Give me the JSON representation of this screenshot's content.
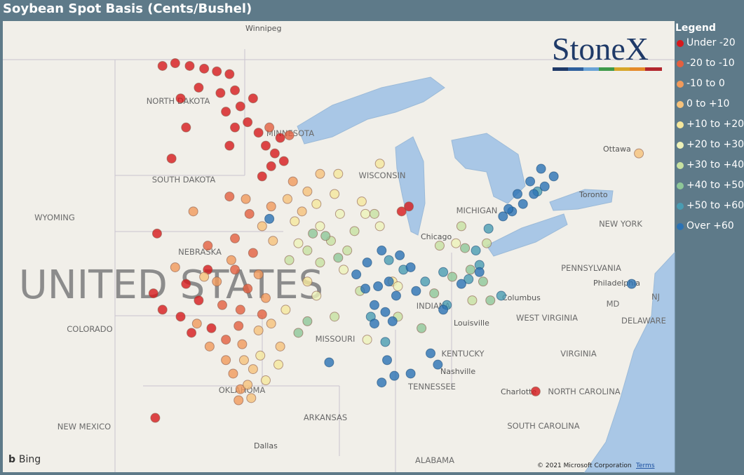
{
  "title": "Soybean Spot Basis (Cents/Bushel)",
  "logo": "StoneX",
  "legend": {
    "title": "Legend",
    "classes": [
      {
        "name": "Under -20",
        "color": "#d7191c"
      },
      {
        "name": "-20 to -10",
        "color": "#e35f3f"
      },
      {
        "name": "-10 to 0",
        "color": "#f19a5b"
      },
      {
        "name": "0 to +10",
        "color": "#f6c27b"
      },
      {
        "name": "+10 to +20",
        "color": "#f5e79c"
      },
      {
        "name": "+20 to +30",
        "color": "#eef2b9"
      },
      {
        "name": "+30 to +40",
        "color": "#c7e1a1"
      },
      {
        "name": "+40 to +50",
        "color": "#8ec798"
      },
      {
        "name": "+50 to +60",
        "color": "#4a9cb2"
      },
      {
        "name": "Over +60",
        "color": "#2b72b4"
      }
    ]
  },
  "map": {
    "country": "UNITED STATES",
    "labels": [
      "Winnipeg",
      "NORTH DAKOTA",
      "MINNESOTA",
      "SOUTH DAKOTA",
      "WYOMING",
      "NEBRASKA",
      "COLORADO",
      "MISSOURI",
      "OKLAHOMA",
      "NEW MEXICO",
      "ARKANSAS",
      "Dallas",
      "ALABAMA",
      "TENNESSEE",
      "KENTUCKY",
      "Nashville",
      "Louisville",
      "INDIANA",
      "Columbus",
      "WEST VIRGINIA",
      "VIRGINIA",
      "NORTH CAROLINA",
      "SOUTH CAROLINA",
      "Charlotte",
      "PENNSYLVANIA",
      "Philadelphia",
      "MD",
      "NJ",
      "DELAWARE",
      "NEW YORK",
      "Ottawa",
      "Chicago",
      "Toronto",
      "MICHIGAN",
      "WISCONSIN"
    ],
    "points": [
      [
        -101.5,
        48.5,
        0
      ],
      [
        -100.8,
        48.6,
        0
      ],
      [
        -100,
        48.5,
        0
      ],
      [
        -99.2,
        48.4,
        0
      ],
      [
        -98.5,
        48.3,
        0
      ],
      [
        -97.8,
        48.2,
        0
      ],
      [
        -97.5,
        47.6,
        0
      ],
      [
        -98.3,
        47.5,
        0
      ],
      [
        -99.5,
        47.7,
        0
      ],
      [
        -100.5,
        47.3,
        0
      ],
      [
        -97.2,
        47,
        0
      ],
      [
        -98,
        46.8,
        0
      ],
      [
        -96.8,
        46.4,
        0
      ],
      [
        -97.5,
        46.2,
        0
      ],
      [
        -96.5,
        47.3,
        0
      ],
      [
        -96.2,
        46,
        0
      ],
      [
        -95.8,
        45.5,
        0
      ],
      [
        -95.3,
        45.2,
        0
      ],
      [
        -95.5,
        44.7,
        0
      ],
      [
        -96,
        44.3,
        0
      ],
      [
        -94.8,
        44.9,
        0
      ],
      [
        -95,
        45.8,
        0
      ],
      [
        -100.2,
        46.2,
        0
      ],
      [
        -101,
        45,
        0
      ],
      [
        -97.8,
        45.5,
        0
      ],
      [
        -101.8,
        42,
        0
      ],
      [
        -102,
        39.5,
        0
      ],
      [
        -101.5,
        38.8,
        0
      ],
      [
        -100.5,
        38.5,
        0
      ],
      [
        -99.5,
        39.2,
        0
      ],
      [
        -98.8,
        38,
        0
      ],
      [
        -99,
        40.5,
        0
      ],
      [
        -100.2,
        39.9,
        0
      ],
      [
        -99.9,
        37.8,
        0
      ],
      [
        -101.9,
        34,
        0
      ],
      [
        -87.9,
        43.1,
        0
      ],
      [
        -88.3,
        42.9,
        0
      ],
      [
        -80.9,
        35.2,
        0
      ],
      [
        -97.5,
        40.5,
        1
      ],
      [
        -96.8,
        39.7,
        1
      ],
      [
        -97.2,
        38.8,
        1
      ],
      [
        -98.2,
        39,
        1
      ],
      [
        -96,
        38.6,
        1
      ],
      [
        -96.5,
        41.2,
        1
      ],
      [
        -97.5,
        41.8,
        1
      ],
      [
        -99,
        41.5,
        1
      ],
      [
        -98,
        37.5,
        1
      ],
      [
        -96.7,
        42.8,
        1
      ],
      [
        -97.8,
        43.5,
        1
      ],
      [
        -94.5,
        45.9,
        1
      ],
      [
        -95.6,
        46.2,
        1
      ],
      [
        -97.3,
        38.1,
        1
      ],
      [
        -98.5,
        40,
        2
      ],
      [
        -97.7,
        40.9,
        2
      ],
      [
        -96.2,
        40.3,
        2
      ],
      [
        -95.8,
        39.3,
        2
      ],
      [
        -97.1,
        37.3,
        2
      ],
      [
        -98,
        36.6,
        2
      ],
      [
        -97.6,
        36,
        2
      ],
      [
        -97.2,
        35.3,
        2
      ],
      [
        -97.3,
        34.8,
        2
      ],
      [
        -99.8,
        42.9,
        2
      ],
      [
        -96.9,
        43.4,
        2
      ],
      [
        -95.5,
        43.1,
        2
      ],
      [
        -94.3,
        44.1,
        2
      ],
      [
        -100.8,
        40.6,
        2
      ],
      [
        -99.6,
        38.2,
        2
      ],
      [
        -98.9,
        37.2,
        2
      ],
      [
        -96,
        42.3,
        3
      ],
      [
        -95.4,
        41.7,
        3
      ],
      [
        -96.5,
        36.2,
        3
      ],
      [
        -96.8,
        35.5,
        3
      ],
      [
        -95,
        37.2,
        3
      ],
      [
        -95.5,
        38.2,
        3
      ],
      [
        -94.6,
        43.4,
        3
      ],
      [
        -93.5,
        43.7,
        3
      ],
      [
        -92.8,
        44.4,
        3
      ],
      [
        -93.8,
        42.9,
        3
      ],
      [
        -96.2,
        37.9,
        3
      ],
      [
        -97,
        36.6,
        3
      ],
      [
        -96.6,
        34.9,
        3
      ],
      [
        -99.2,
        40.2,
        3
      ],
      [
        -75.2,
        45.2,
        3
      ],
      [
        -93,
        43.2,
        4
      ],
      [
        -92,
        43.6,
        4
      ],
      [
        -94.2,
        42.5,
        4
      ],
      [
        -95.1,
        36.4,
        4
      ],
      [
        -94.7,
        38.8,
        4
      ],
      [
        -93.5,
        40,
        4
      ],
      [
        -91.8,
        44.4,
        4
      ],
      [
        -90.5,
        43.3,
        4
      ],
      [
        -89.5,
        44.8,
        4
      ],
      [
        -88.8,
        40,
        4
      ],
      [
        -96.1,
        36.8,
        4
      ],
      [
        -95.8,
        35.7,
        4
      ],
      [
        -92.8,
        42.3,
        5
      ],
      [
        -91.7,
        42.8,
        5
      ],
      [
        -94,
        41.6,
        5
      ],
      [
        -93,
        39.4,
        5
      ],
      [
        -91.5,
        40.5,
        5
      ],
      [
        -90.3,
        42.8,
        5
      ],
      [
        -89.5,
        42.3,
        5
      ],
      [
        -85.3,
        41.6,
        5
      ],
      [
        -90.2,
        37.5,
        5
      ],
      [
        -88.5,
        39.8,
        5
      ],
      [
        -93.5,
        41.3,
        6
      ],
      [
        -92.2,
        41.7,
        6
      ],
      [
        -91.3,
        41.3,
        6
      ],
      [
        -92.8,
        40.8,
        6
      ],
      [
        -94.5,
        40.9,
        6
      ],
      [
        -90.9,
        42.1,
        6
      ],
      [
        -89.8,
        42.8,
        6
      ],
      [
        -86.2,
        41.5,
        6
      ],
      [
        -85,
        42.3,
        6
      ],
      [
        -84.4,
        39.2,
        6
      ],
      [
        -83.6,
        41.6,
        6
      ],
      [
        -90.6,
        39.6,
        6
      ],
      [
        -92,
        38.5,
        6
      ],
      [
        -88.5,
        38.5,
        6
      ],
      [
        -92.5,
        41.9,
        7
      ],
      [
        -93.2,
        42,
        7
      ],
      [
        -91.8,
        41,
        7
      ],
      [
        -84.5,
        40.5,
        7
      ],
      [
        -83.8,
        40,
        7
      ],
      [
        -85.5,
        40.2,
        7
      ],
      [
        -86.5,
        39.5,
        7
      ],
      [
        -94,
        37.8,
        7
      ],
      [
        -93.5,
        38.3,
        7
      ],
      [
        -87.2,
        38,
        7
      ],
      [
        -84.8,
        41.4,
        7
      ],
      [
        -83.4,
        39.2,
        7
      ],
      [
        -84,
        40.7,
        8
      ],
      [
        -84.6,
        40.1,
        8
      ],
      [
        -86,
        40.4,
        8
      ],
      [
        -87,
        40,
        8
      ],
      [
        -88.2,
        40.5,
        8
      ],
      [
        -89,
        40.9,
        8
      ],
      [
        -90,
        38.5,
        8
      ],
      [
        -89.2,
        37.4,
        8
      ],
      [
        -85.8,
        39,
        8
      ],
      [
        -82.8,
        39.4,
        8
      ],
      [
        -84.2,
        41.3,
        8
      ],
      [
        -83.5,
        42.2,
        8
      ],
      [
        -80.8,
        43.7,
        8
      ],
      [
        -90.8,
        40.3,
        9
      ],
      [
        -90.3,
        39.7,
        9
      ],
      [
        -89.6,
        39.8,
        9
      ],
      [
        -89,
        40,
        9
      ],
      [
        -88.6,
        39.4,
        9
      ],
      [
        -89.8,
        39,
        9
      ],
      [
        -89.2,
        38.7,
        9
      ],
      [
        -88.8,
        38.3,
        9
      ],
      [
        -89.8,
        38.2,
        9
      ],
      [
        -90.2,
        40.8,
        9
      ],
      [
        -89.4,
        41.3,
        9
      ],
      [
        -88.4,
        41.1,
        9
      ],
      [
        -87.8,
        40.6,
        9
      ],
      [
        -87.5,
        39.6,
        9
      ],
      [
        -89.1,
        36.6,
        9
      ],
      [
        -88.7,
        35.9,
        9
      ],
      [
        -89.4,
        35.6,
        9
      ],
      [
        -87.8,
        36,
        9
      ],
      [
        -86.3,
        36.4,
        9
      ],
      [
        -86.7,
        36.9,
        9
      ],
      [
        -82.7,
        42.7,
        9
      ],
      [
        -82.2,
        42.9,
        9
      ],
      [
        -81.6,
        43.2,
        9
      ],
      [
        -81,
        43.6,
        9
      ],
      [
        -80.4,
        43.9,
        9
      ],
      [
        -79.9,
        44.3,
        9
      ],
      [
        -80.6,
        44.6,
        9
      ],
      [
        -81.2,
        44.1,
        9
      ],
      [
        -81.9,
        43.6,
        9
      ],
      [
        -82.4,
        43,
        9
      ],
      [
        -84,
        40.4,
        9
      ],
      [
        -85,
        39.9,
        9
      ],
      [
        -86,
        38.8,
        9
      ],
      [
        -75.6,
        39.9,
        9
      ],
      [
        -95.6,
        42.6,
        9
      ],
      [
        -92.3,
        36.5,
        9
      ]
    ]
  },
  "attribution": {
    "bing": "Bing",
    "copyright": "© 2021 Microsoft Corporation",
    "terms": "Terms"
  }
}
